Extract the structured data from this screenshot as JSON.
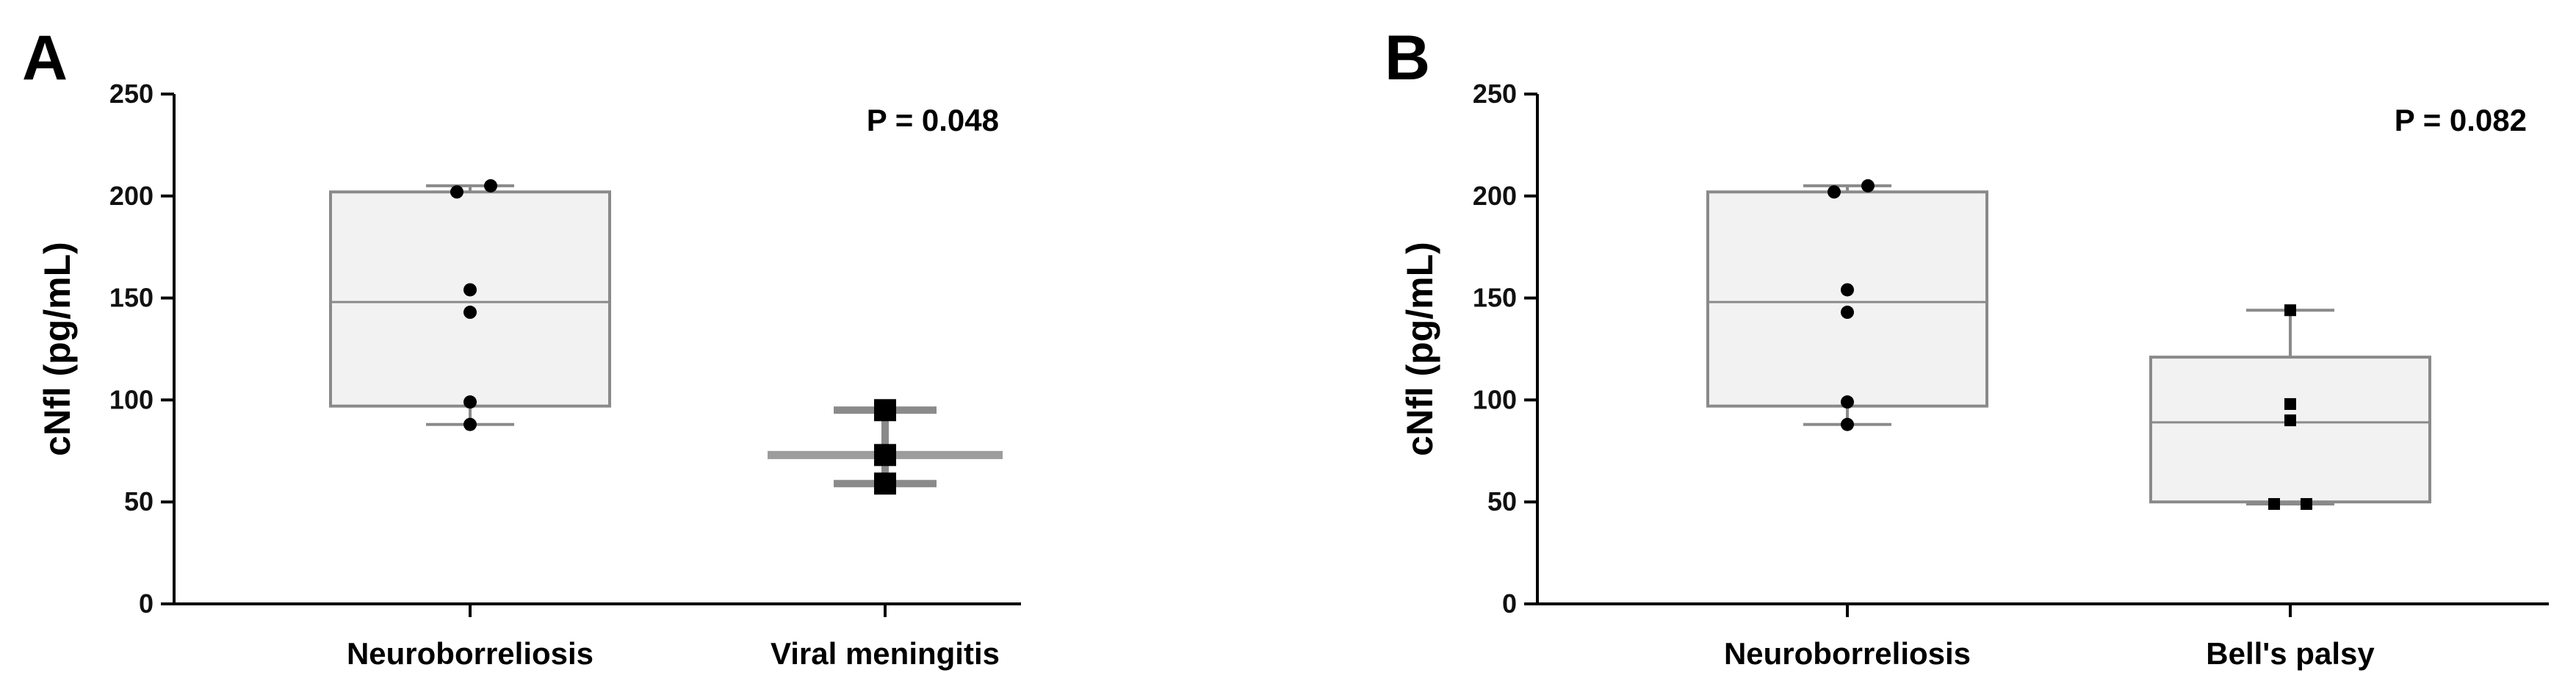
{
  "chart_data": [
    {
      "panel": "A",
      "type": "box",
      "ylabel": "cNfl (pg/mL)",
      "ylim": [
        0,
        250
      ],
      "yticks": [
        0,
        50,
        100,
        150,
        200,
        250
      ],
      "categories": [
        "Neuroborreliosis",
        "Viral meningitis"
      ],
      "annotation": "P = 0.048",
      "groups": [
        {
          "name": "Neuroborreliosis",
          "marker": "circle",
          "box": {
            "min": 88,
            "q1": 97,
            "median": 148,
            "q3": 202,
            "max": 205
          },
          "points": [
            88,
            99,
            143,
            154,
            202,
            205
          ]
        },
        {
          "name": "Viral meningitis",
          "marker": "square",
          "box": {
            "min": 59,
            "q1": 71,
            "median": 73,
            "q3": 75,
            "max": 95
          },
          "points": [
            59,
            73,
            95
          ]
        }
      ]
    },
    {
      "panel": "B",
      "type": "box",
      "ylabel": "cNfl (pg/mL)",
      "ylim": [
        0,
        250
      ],
      "yticks": [
        0,
        50,
        100,
        150,
        200,
        250
      ],
      "categories": [
        "Neuroborreliosis",
        "Bell's palsy"
      ],
      "annotation": "P = 0.082",
      "groups": [
        {
          "name": "Neuroborreliosis",
          "marker": "circle",
          "box": {
            "min": 88,
            "q1": 97,
            "median": 148,
            "q3": 202,
            "max": 205
          },
          "points": [
            88,
            99,
            143,
            154,
            202,
            205
          ]
        },
        {
          "name": "Bell's palsy",
          "marker": "square",
          "box": {
            "min": 49,
            "q1": 50,
            "median": 89,
            "q3": 121,
            "max": 144
          },
          "points": [
            49,
            49,
            90,
            98,
            144
          ]
        }
      ]
    }
  ],
  "colors": {
    "box_fill": "#f2f2f2",
    "box_stroke": "#8a8a8a",
    "whisker": "#8a8a8a",
    "thin_box": "#9c9c9c",
    "axis": "#000000",
    "points": "#000000"
  }
}
